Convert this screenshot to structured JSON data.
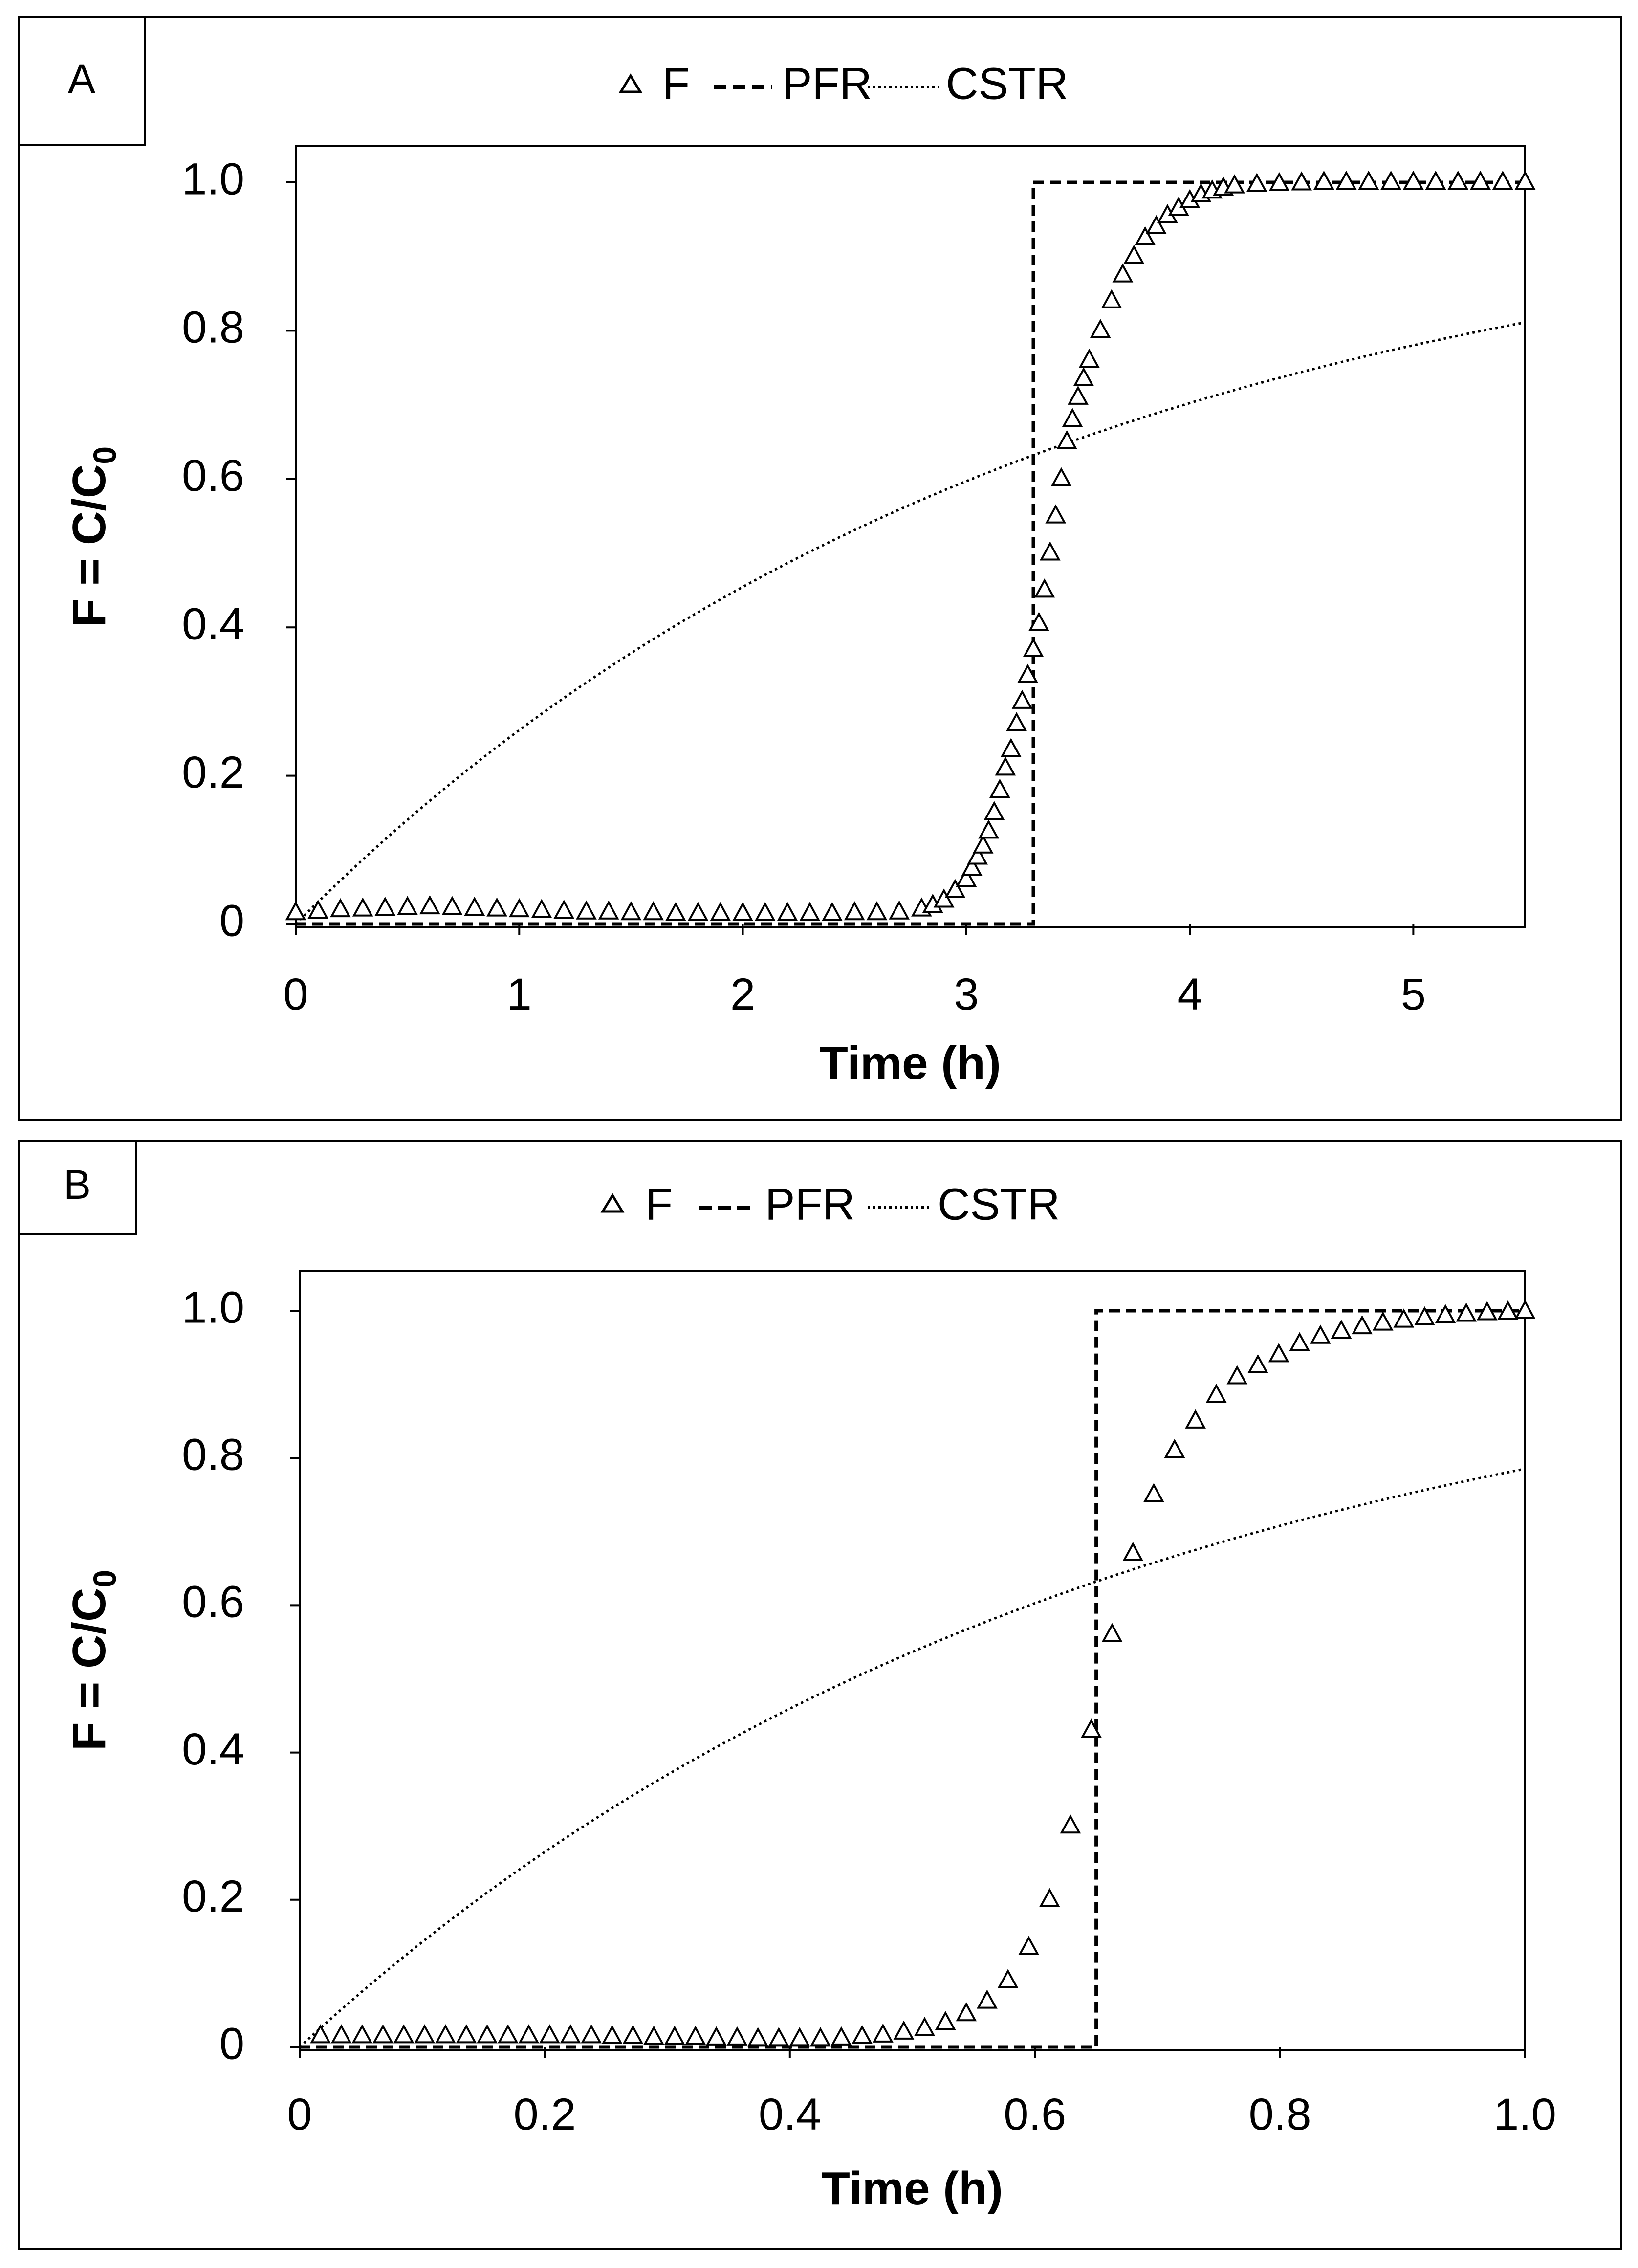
{
  "chart_data": [
    {
      "type": "line",
      "panel_label": "A",
      "xlabel": "Time (h)",
      "ylabel_main": "F = C/C",
      "ylabel_sub": "0",
      "xlim": [
        0,
        5.5
      ],
      "ylim": [
        0,
        1.0
      ],
      "x_ticks": [
        0,
        1,
        2,
        3,
        4,
        5
      ],
      "x_tick_labels": [
        "0",
        "1",
        "2",
        "3",
        "4",
        "5"
      ],
      "y_ticks": [
        0,
        0.2,
        0.4,
        0.6,
        0.8,
        1.0
      ],
      "y_tick_labels": [
        "0",
        "0.2",
        "0.4",
        "0.6",
        "0.8",
        "1.0"
      ],
      "legend": [
        "F",
        "PFR",
        "CSTR"
      ],
      "legend_position": "top-center",
      "series": [
        {
          "name": "F",
          "style": "open-triangle-markers",
          "x": [
            0,
            0.1,
            0.2,
            0.3,
            0.4,
            0.5,
            0.6,
            0.7,
            0.8,
            0.9,
            1.0,
            1.1,
            1.2,
            1.3,
            1.4,
            1.5,
            1.6,
            1.7,
            1.8,
            1.9,
            2.0,
            2.1,
            2.2,
            2.3,
            2.4,
            2.5,
            2.6,
            2.7,
            2.8,
            2.85,
            2.9,
            2.95,
            3.0,
            3.025,
            3.05,
            3.075,
            3.1,
            3.125,
            3.15,
            3.175,
            3.2,
            3.225,
            3.25,
            3.275,
            3.3,
            3.325,
            3.35,
            3.375,
            3.4,
            3.425,
            3.45,
            3.475,
            3.5,
            3.525,
            3.55,
            3.6,
            3.65,
            3.7,
            3.75,
            3.8,
            3.85,
            3.9,
            3.95,
            4.0,
            4.05,
            4.1,
            4.15,
            4.2,
            4.3,
            4.4,
            4.5,
            4.6,
            4.7,
            4.8,
            4.9,
            5.0,
            5.1,
            5.2,
            5.3,
            5.4,
            5.5
          ],
          "y": [
            0.015,
            0.017,
            0.019,
            0.02,
            0.021,
            0.022,
            0.023,
            0.022,
            0.021,
            0.02,
            0.019,
            0.018,
            0.017,
            0.016,
            0.016,
            0.015,
            0.015,
            0.014,
            0.014,
            0.014,
            0.014,
            0.014,
            0.014,
            0.014,
            0.014,
            0.015,
            0.015,
            0.016,
            0.02,
            0.025,
            0.032,
            0.045,
            0.06,
            0.075,
            0.09,
            0.105,
            0.125,
            0.15,
            0.18,
            0.21,
            0.235,
            0.27,
            0.3,
            0.335,
            0.37,
            0.405,
            0.45,
            0.5,
            0.55,
            0.6,
            0.65,
            0.68,
            0.71,
            0.735,
            0.76,
            0.8,
            0.84,
            0.875,
            0.9,
            0.925,
            0.94,
            0.955,
            0.965,
            0.975,
            0.983,
            0.988,
            0.992,
            0.995,
            0.997,
            0.998,
            0.999,
            1.0,
            1.0,
            1.0,
            1.0,
            1.0,
            1.0,
            1.0,
            1.0,
            1.0,
            1.0
          ]
        },
        {
          "name": "PFR",
          "style": "dashed",
          "x": [
            0,
            3.3,
            3.3,
            5.5
          ],
          "y": [
            0,
            0,
            1.0,
            1.0
          ]
        },
        {
          "name": "CSTR",
          "style": "dotted",
          "tau": 3.3,
          "x_range": [
            0,
            5.5
          ]
        }
      ]
    },
    {
      "type": "line",
      "panel_label": "B",
      "xlabel": "Time (h)",
      "ylabel_main": "F = C/C",
      "ylabel_sub": "0",
      "xlim": [
        0,
        1.0
      ],
      "ylim": [
        0,
        1.0
      ],
      "x_ticks": [
        0,
        0.2,
        0.4,
        0.6,
        0.8,
        1.0
      ],
      "x_tick_labels": [
        "0",
        "0.2",
        "0.4",
        "0.6",
        "0.8",
        "1.0"
      ],
      "y_ticks": [
        0,
        0.2,
        0.4,
        0.6,
        0.8,
        1.0
      ],
      "y_tick_labels": [
        "0",
        "0.2",
        "0.4",
        "0.6",
        "0.8",
        "1.0"
      ],
      "legend": [
        "F",
        "PFR",
        "CSTR"
      ],
      "legend_position": "top-center",
      "series": [
        {
          "name": "F",
          "style": "open-triangle-markers",
          "x": [
            0.017,
            0.034,
            0.051,
            0.068,
            0.085,
            0.102,
            0.119,
            0.136,
            0.153,
            0.17,
            0.187,
            0.204,
            0.221,
            0.238,
            0.255,
            0.272,
            0.289,
            0.306,
            0.323,
            0.34,
            0.357,
            0.374,
            0.391,
            0.408,
            0.425,
            0.442,
            0.459,
            0.476,
            0.493,
            0.51,
            0.527,
            0.544,
            0.561,
            0.578,
            0.595,
            0.612,
            0.629,
            0.646,
            0.663,
            0.68,
            0.697,
            0.714,
            0.731,
            0.748,
            0.765,
            0.782,
            0.799,
            0.816,
            0.833,
            0.85,
            0.867,
            0.884,
            0.901,
            0.918,
            0.935,
            0.952,
            0.969,
            0.986,
            1.0
          ],
          "y": [
            0.015,
            0.015,
            0.015,
            0.015,
            0.015,
            0.015,
            0.015,
            0.015,
            0.015,
            0.015,
            0.015,
            0.015,
            0.015,
            0.015,
            0.014,
            0.014,
            0.013,
            0.013,
            0.013,
            0.012,
            0.012,
            0.011,
            0.011,
            0.011,
            0.011,
            0.012,
            0.014,
            0.016,
            0.02,
            0.025,
            0.033,
            0.045,
            0.062,
            0.09,
            0.135,
            0.2,
            0.3,
            0.43,
            0.56,
            0.67,
            0.75,
            0.81,
            0.85,
            0.885,
            0.91,
            0.925,
            0.94,
            0.955,
            0.965,
            0.972,
            0.978,
            0.983,
            0.987,
            0.99,
            0.993,
            0.995,
            0.997,
            0.998,
            0.999
          ]
        },
        {
          "name": "PFR",
          "style": "dashed",
          "x": [
            0,
            0.65,
            0.65,
            1.0
          ],
          "y": [
            0,
            0,
            1.0,
            1.0
          ]
        },
        {
          "name": "CSTR",
          "style": "dotted",
          "tau": 0.65,
          "x_range": [
            0,
            1.0
          ]
        }
      ]
    }
  ]
}
